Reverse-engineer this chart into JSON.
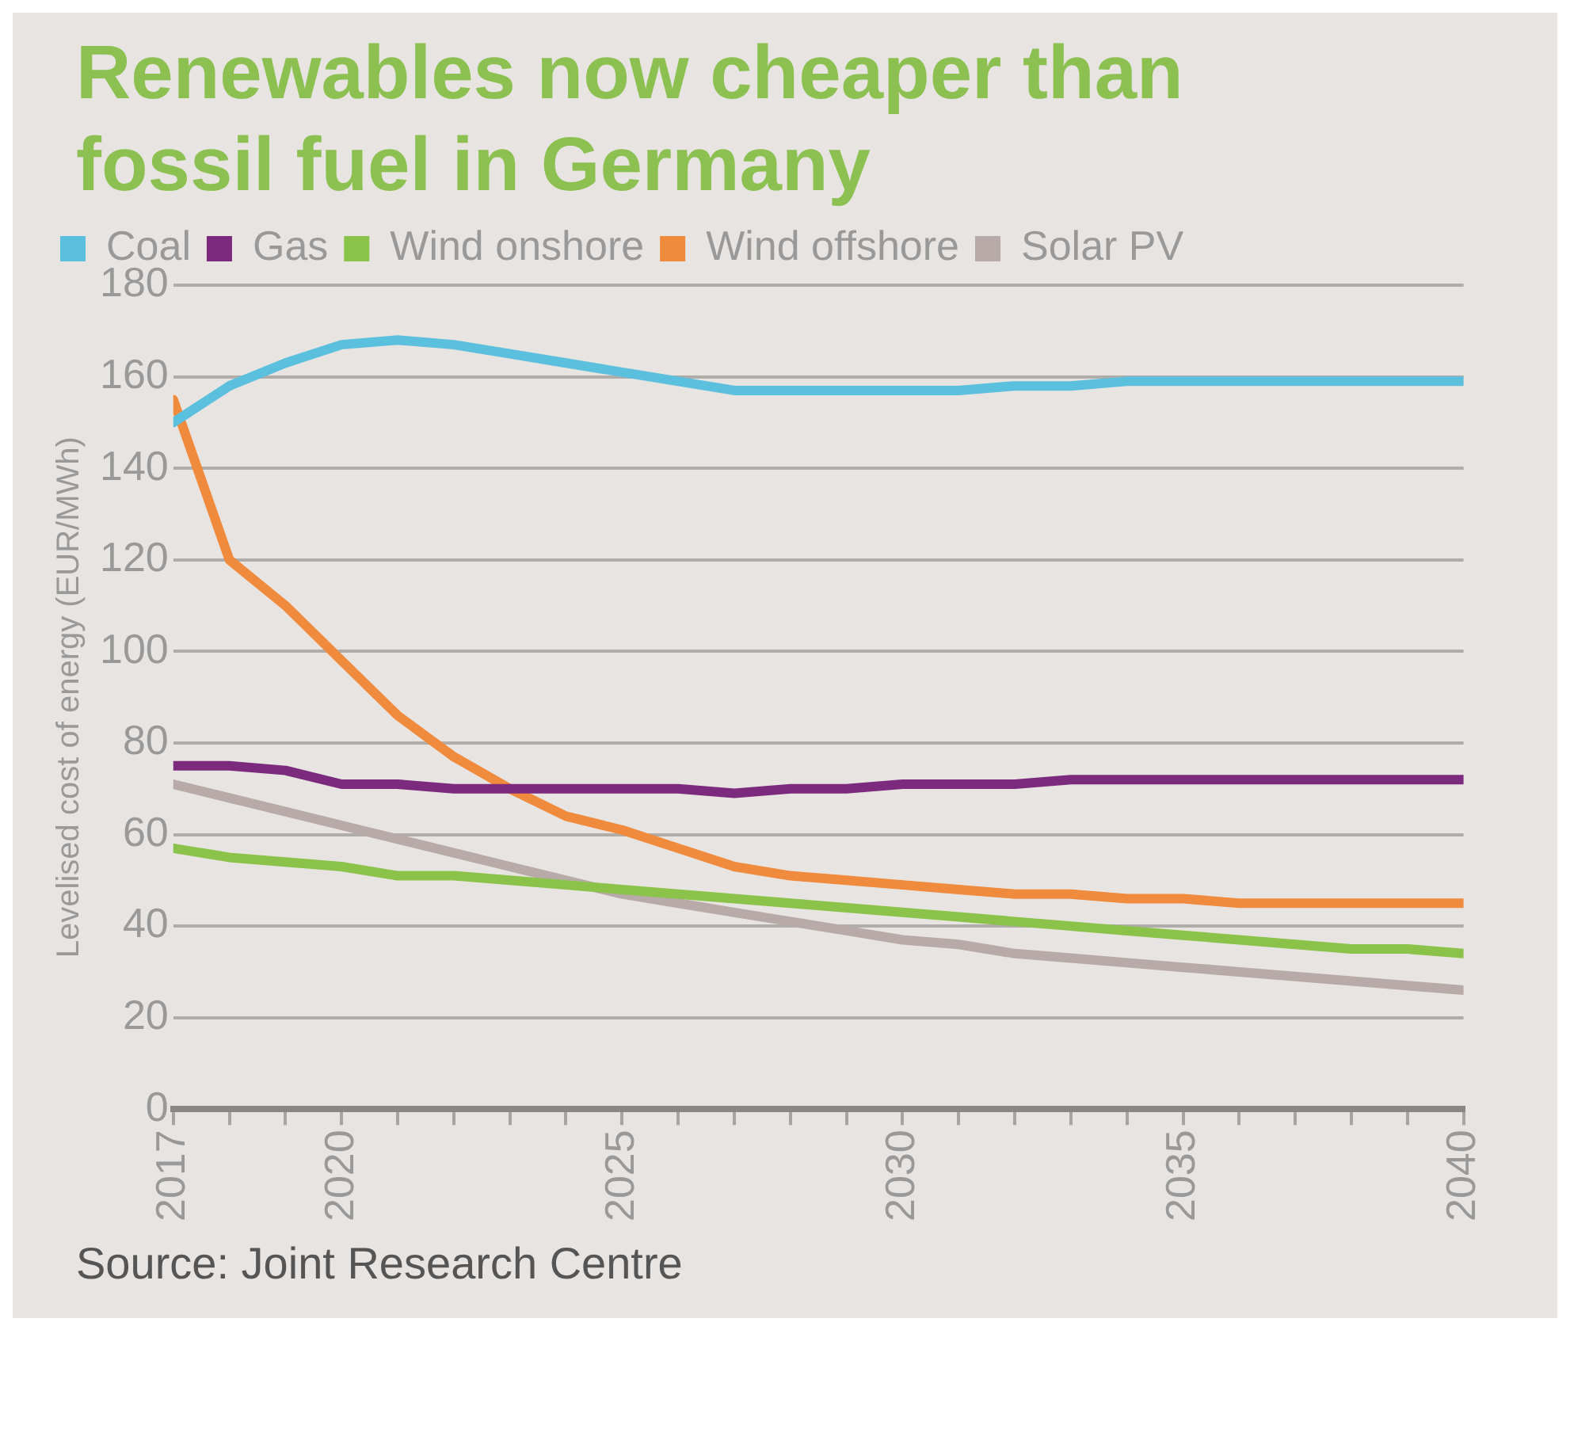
{
  "chart_data": {
    "type": "line",
    "title": "Renewables now cheaper than fossil fuel in Germany",
    "ylabel": "Levelised cost of energy (EUR/MWh)",
    "x": [
      2017,
      2018,
      2019,
      2020,
      2021,
      2022,
      2023,
      2024,
      2025,
      2026,
      2027,
      2028,
      2029,
      2030,
      2031,
      2032,
      2033,
      2034,
      2035,
      2036,
      2037,
      2038,
      2039,
      2040
    ],
    "series": [
      {
        "name": "Coal",
        "color": "#5bc0de",
        "values": [
          150,
          158,
          163,
          167,
          168,
          167,
          165,
          163,
          161,
          159,
          157,
          157,
          157,
          157,
          157,
          158,
          158,
          159,
          159,
          159,
          159,
          159,
          159,
          159
        ]
      },
      {
        "name": "Gas",
        "color": "#7b2a7e",
        "values": [
          75,
          75,
          74,
          71,
          71,
          70,
          70,
          70,
          70,
          70,
          69,
          70,
          70,
          71,
          71,
          71,
          72,
          72,
          72,
          72,
          72,
          72,
          72,
          72
        ]
      },
      {
        "name": "Wind onshore",
        "color": "#8bc34a",
        "values": [
          57,
          55,
          54,
          53,
          51,
          51,
          50,
          49,
          48,
          47,
          46,
          45,
          44,
          43,
          42,
          41,
          40,
          39,
          38,
          37,
          36,
          35,
          35,
          34
        ]
      },
      {
        "name": "Wind offshore",
        "color": "#f08a3c",
        "values": [
          155,
          120,
          110,
          98,
          86,
          77,
          70,
          64,
          61,
          57,
          53,
          51,
          50,
          49,
          48,
          47,
          47,
          46,
          46,
          45,
          45,
          45,
          45,
          45
        ]
      },
      {
        "name": "Solar PV",
        "color": "#b8aaa8",
        "values": [
          71,
          68,
          65,
          62,
          59,
          56,
          53,
          50,
          47,
          45,
          43,
          41,
          39,
          37,
          36,
          34,
          33,
          32,
          31,
          30,
          29,
          28,
          27,
          26
        ]
      }
    ],
    "xlim": [
      2017,
      2040
    ],
    "xticks": [
      2017,
      {
        "value": 2018,
        "label": null
      },
      {
        "value": 2019,
        "label": null
      },
      2020,
      {
        "value": 2021,
        "label": null
      },
      {
        "value": 2022,
        "label": null
      },
      {
        "value": 2023,
        "label": null
      },
      {
        "value": 2024,
        "label": null
      },
      2025,
      {
        "value": 2026,
        "label": null
      },
      {
        "value": 2027,
        "label": null
      },
      {
        "value": 2028,
        "label": null
      },
      {
        "value": 2029,
        "label": null
      },
      2030,
      {
        "value": 2031,
        "label": null
      },
      {
        "value": 2032,
        "label": null
      },
      {
        "value": 2033,
        "label": null
      },
      {
        "value": 2034,
        "label": null
      },
      2035,
      {
        "value": 2036,
        "label": null
      },
      {
        "value": 2037,
        "label": null
      },
      {
        "value": 2038,
        "label": null
      },
      {
        "value": 2039,
        "label": null
      },
      2040
    ],
    "ylim": [
      0,
      180
    ],
    "yticks": [
      0,
      20,
      40,
      60,
      80,
      100,
      120,
      140,
      160,
      180
    ],
    "grid": "y",
    "legend": "top",
    "marker": "none",
    "line_style": "solid",
    "annotations": [
      "Source: Joint Research Centre"
    ]
  }
}
